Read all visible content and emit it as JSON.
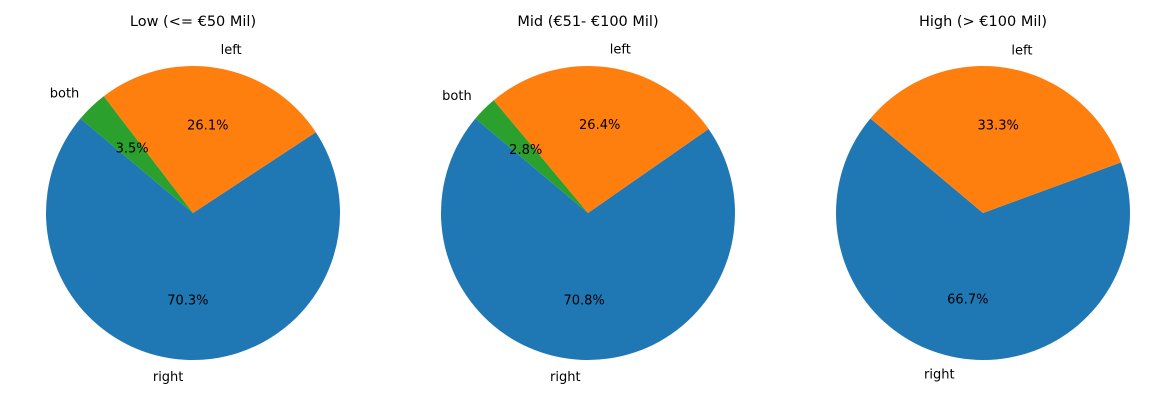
{
  "chart_data": [
    {
      "type": "pie",
      "title": "Low (<= €50 Mil)",
      "labels": [
        "right",
        "left",
        "both"
      ],
      "values": [
        70.3,
        26.1,
        3.5
      ],
      "percent_labels": [
        "70.3%",
        "26.1%",
        "3.5%"
      ],
      "colors": [
        "#1f77b4",
        "#ff7f0e",
        "#2ca02c"
      ],
      "start_angle_deg": 140,
      "counterclockwise": true
    },
    {
      "type": "pie",
      "title": "Mid (€51- €100 Mil)",
      "labels": [
        "right",
        "left",
        "both"
      ],
      "values": [
        70.8,
        26.4,
        2.8
      ],
      "percent_labels": [
        "70.8%",
        "26.4%",
        "2.8%"
      ],
      "colors": [
        "#1f77b4",
        "#ff7f0e",
        "#2ca02c"
      ],
      "start_angle_deg": 140,
      "counterclockwise": true
    },
    {
      "type": "pie",
      "title": "High (> €100 Mil)",
      "labels": [
        "right",
        "left"
      ],
      "values": [
        66.7,
        33.3
      ],
      "percent_labels": [
        "66.7%",
        "33.3%"
      ],
      "colors": [
        "#1f77b4",
        "#ff7f0e"
      ],
      "start_angle_deg": 140,
      "counterclockwise": true
    }
  ]
}
